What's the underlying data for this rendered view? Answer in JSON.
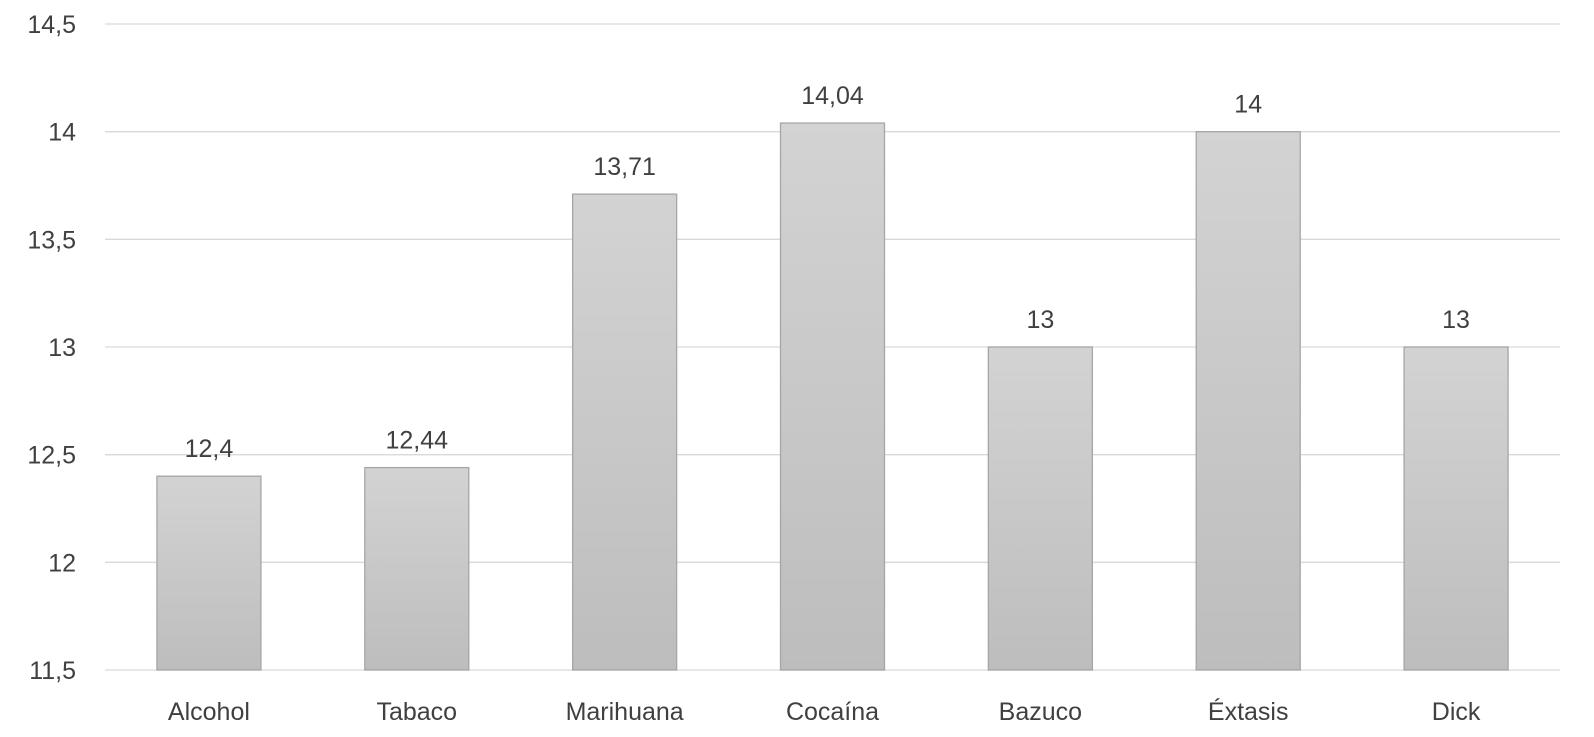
{
  "chart_data": {
    "type": "bar",
    "title": "",
    "xlabel": "",
    "ylabel": "",
    "categories": [
      "Alcohol",
      "Tabaco",
      "Marihuana",
      "Cocaína",
      "Bazuco",
      "Éxtasis",
      "Dick"
    ],
    "values": [
      12.4,
      12.44,
      13.71,
      14.04,
      13,
      14,
      13
    ],
    "value_labels": [
      "12,4",
      "12,44",
      "13,71",
      "14,04",
      "13",
      "14",
      "13"
    ],
    "ylim": [
      11.5,
      14.5
    ],
    "yticks": [
      11.5,
      12,
      12.5,
      13,
      13.5,
      14,
      14.5
    ],
    "ytick_labels": [
      "11,5",
      "12",
      "12,5",
      "13",
      "13,5",
      "14",
      "14,5"
    ],
    "grid": true,
    "legend": "none",
    "bar_color_top": "#d3d3d3",
    "bar_color_bottom": "#bdbdbd",
    "bar_border_color": "#a6a6a6",
    "grid_color": "#d9d9d9",
    "text_color": "#404040"
  }
}
